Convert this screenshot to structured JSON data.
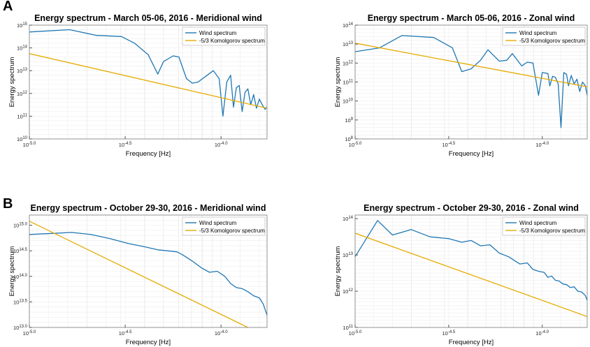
{
  "panels": [
    {
      "letter": "A"
    },
    {
      "letter": "B"
    }
  ],
  "chart_data": [
    {
      "type": "line",
      "title": "Energy spectrum - March 05-06, 2016 - Meridional wind",
      "xlabel": "Frequency [Hz]",
      "ylabel": "Energy spectrum",
      "xscale": "log",
      "yscale": "log",
      "xlim": [
        -5.0,
        -3.76
      ],
      "ylim": [
        10,
        15
      ],
      "xticks": [
        {
          "v": -5.0,
          "base": "10",
          "exp": "-5.0"
        },
        {
          "v": -4.5,
          "base": "10",
          "exp": "-4.5"
        },
        {
          "v": -4.0,
          "base": "10",
          "exp": "-4.0"
        }
      ],
      "yticks": [
        {
          "v": 10,
          "base": "10",
          "exp": "10"
        },
        {
          "v": 11,
          "base": "10",
          "exp": "11"
        },
        {
          "v": 12,
          "base": "10",
          "exp": "12"
        },
        {
          "v": 13,
          "base": "10",
          "exp": "13"
        },
        {
          "v": 14,
          "base": "10",
          "exp": "14"
        },
        {
          "v": 15,
          "base": "10",
          "exp": "15"
        }
      ],
      "grid": true,
      "legend_position": "top-right",
      "series": [
        {
          "name": "Wind spectrum",
          "color": "#1f77b4",
          "x": [
            -5.0,
            -4.79,
            -4.65,
            -4.52,
            -4.45,
            -4.38,
            -4.33,
            -4.3,
            -4.25,
            -4.22,
            -4.18,
            -4.15,
            -4.12,
            -4.08,
            -4.04,
            -4.01,
            -3.99,
            -3.97,
            -3.95,
            -3.935,
            -3.92,
            -3.905,
            -3.89,
            -3.875,
            -3.86,
            -3.845,
            -3.83,
            -3.815,
            -3.8,
            -3.785,
            -3.77,
            -3.76
          ],
          "y": [
            14.7,
            14.8,
            14.55,
            14.5,
            14.2,
            13.7,
            12.85,
            13.4,
            13.65,
            13.6,
            12.65,
            12.45,
            12.5,
            12.75,
            13.0,
            12.65,
            11.0,
            12.5,
            12.8,
            11.4,
            12.25,
            12.35,
            11.2,
            12.05,
            12.2,
            11.5,
            11.95,
            11.35,
            11.75,
            11.5,
            11.3,
            11.4
          ]
        },
        {
          "name": "-5/3 Komolgorov spectrum",
          "color": "#e6ab02",
          "x": [
            -5.0,
            -3.76
          ],
          "y": [
            13.75,
            11.35
          ]
        }
      ]
    },
    {
      "type": "line",
      "title": "Energy spectrum - March 05-06, 2016 - Zonal wind",
      "xlabel": "Frequency [Hz]",
      "ylabel": "Energy spectrum",
      "xscale": "log",
      "yscale": "log",
      "xlim": [
        -5.0,
        -3.76
      ],
      "ylim": [
        8,
        14
      ],
      "xticks": [
        {
          "v": -5.0,
          "base": "10",
          "exp": "-5.0"
        },
        {
          "v": -4.5,
          "base": "10",
          "exp": "-4.5"
        },
        {
          "v": -4.0,
          "base": "10",
          "exp": "-4.0"
        }
      ],
      "yticks": [
        {
          "v": 8,
          "base": "10",
          "exp": "8"
        },
        {
          "v": 9,
          "base": "10",
          "exp": "9"
        },
        {
          "v": 10,
          "base": "10",
          "exp": "10"
        },
        {
          "v": 11,
          "base": "10",
          "exp": "11"
        },
        {
          "v": 12,
          "base": "10",
          "exp": "12"
        },
        {
          "v": 13,
          "base": "10",
          "exp": "13"
        },
        {
          "v": 14,
          "base": "10",
          "exp": "14"
        }
      ],
      "grid": true,
      "legend_position": "top-right",
      "series": [
        {
          "name": "Wind spectrum",
          "color": "#1f77b4",
          "x": [
            -5.0,
            -4.87,
            -4.75,
            -4.58,
            -4.48,
            -4.43,
            -4.38,
            -4.33,
            -4.29,
            -4.23,
            -4.19,
            -4.16,
            -4.11,
            -4.08,
            -4.05,
            -4.02,
            -4.0,
            -3.97,
            -3.96,
            -3.945,
            -3.93,
            -3.915,
            -3.9,
            -3.885,
            -3.87,
            -3.86,
            -3.845,
            -3.83,
            -3.815,
            -3.8,
            -3.785,
            -3.77,
            -3.76
          ],
          "y": [
            12.6,
            12.8,
            13.45,
            13.35,
            12.8,
            11.55,
            11.7,
            12.15,
            12.7,
            12.1,
            12.15,
            12.5,
            11.85,
            12.05,
            12.0,
            10.3,
            11.5,
            11.45,
            10.8,
            11.3,
            11.25,
            10.9,
            8.6,
            11.5,
            11.4,
            10.8,
            11.35,
            10.9,
            11.15,
            10.5,
            11.0,
            10.8,
            10.3
          ]
        },
        {
          "name": "-5/3 Komolgorov spectrum",
          "color": "#e6ab02",
          "x": [
            -5.0,
            -3.76
          ],
          "y": [
            13.05,
            10.75
          ]
        }
      ]
    },
    {
      "type": "line",
      "title": "Energy spectrum - October 29-30, 2016 - Meridional wind",
      "xlabel": "Frequency [Hz]",
      "ylabel": "Energy spectrum",
      "xscale": "log",
      "yscale": "log",
      "xlim": [
        -5.0,
        -3.76
      ],
      "ylim": [
        13.0,
        15.2
      ],
      "xticks": [
        {
          "v": -5.0,
          "base": "10",
          "exp": "-5.0"
        },
        {
          "v": -4.5,
          "base": "10",
          "exp": "-4.5"
        },
        {
          "v": -4.0,
          "base": "10",
          "exp": "-4.0"
        }
      ],
      "yticks": [
        {
          "v": 13.0,
          "base": "10",
          "exp": "13.0"
        },
        {
          "v": 13.5,
          "base": "10",
          "exp": "13.5"
        },
        {
          "v": 14.0,
          "base": "10",
          "exp": "14.0"
        },
        {
          "v": 14.5,
          "base": "10",
          "exp": "14.5"
        },
        {
          "v": 15.0,
          "base": "10",
          "exp": "15.0"
        }
      ],
      "grid": true,
      "legend_position": "top-right",
      "series": [
        {
          "name": "Wind spectrum",
          "color": "#1f77b4",
          "x": [
            -5.0,
            -4.88,
            -4.78,
            -4.68,
            -4.58,
            -4.48,
            -4.4,
            -4.33,
            -4.28,
            -4.23,
            -4.2,
            -4.15,
            -4.1,
            -4.06,
            -4.02,
            -3.98,
            -3.95,
            -3.92,
            -3.89,
            -3.86,
            -3.83,
            -3.8,
            -3.78,
            -3.76
          ],
          "y": [
            14.82,
            14.84,
            14.86,
            14.82,
            14.74,
            14.64,
            14.58,
            14.52,
            14.5,
            14.48,
            14.42,
            14.3,
            14.16,
            14.08,
            14.1,
            14.0,
            13.86,
            13.78,
            13.76,
            13.7,
            13.62,
            13.58,
            13.46,
            13.24
          ]
        },
        {
          "name": "-5/3 Komolgorov spectrum",
          "color": "#e6ab02",
          "x": [
            -5.0,
            -3.86
          ],
          "y": [
            15.08,
            13.0
          ]
        }
      ]
    },
    {
      "type": "line",
      "title": "Energy spectrum - October 29-30, 2016 - Zonal wind",
      "xlabel": "Frequency [Hz]",
      "ylabel": "Energy spectrum",
      "xscale": "log",
      "yscale": "log",
      "xlim": [
        -5.0,
        -3.76
      ],
      "ylim": [
        11,
        14.1
      ],
      "xticks": [
        {
          "v": -5.0,
          "base": "10",
          "exp": "-5.0"
        },
        {
          "v": -4.5,
          "base": "10",
          "exp": "-4.5"
        },
        {
          "v": -4.0,
          "base": "10",
          "exp": "-4.0"
        }
      ],
      "yticks": [
        {
          "v": 11,
          "base": "10",
          "exp": "11"
        },
        {
          "v": 12,
          "base": "10",
          "exp": "12"
        },
        {
          "v": 13,
          "base": "10",
          "exp": "13"
        },
        {
          "v": 14,
          "base": "10",
          "exp": "14"
        }
      ],
      "grid": true,
      "legend_position": "top-right",
      "series": [
        {
          "name": "Wind spectrum",
          "color": "#1f77b4",
          "x": [
            -5.0,
            -4.88,
            -4.8,
            -4.7,
            -4.6,
            -4.5,
            -4.43,
            -4.38,
            -4.33,
            -4.28,
            -4.23,
            -4.18,
            -4.12,
            -4.08,
            -4.05,
            -4.02,
            -3.99,
            -3.97,
            -3.95,
            -3.93,
            -3.91,
            -3.89,
            -3.87,
            -3.85,
            -3.83,
            -3.81,
            -3.79,
            -3.77,
            -3.76
          ],
          "y": [
            12.95,
            13.95,
            13.55,
            13.7,
            13.5,
            13.45,
            13.35,
            13.4,
            13.25,
            13.28,
            13.05,
            12.95,
            12.75,
            12.78,
            12.6,
            12.55,
            12.52,
            12.38,
            12.42,
            12.3,
            12.28,
            12.2,
            12.18,
            12.1,
            12.12,
            12.0,
            11.98,
            11.88,
            11.75
          ]
        },
        {
          "name": "-5/3 Komolgorov spectrum",
          "color": "#e6ab02",
          "x": [
            -5.0,
            -3.76
          ],
          "y": [
            13.6,
            11.3
          ]
        }
      ]
    }
  ]
}
